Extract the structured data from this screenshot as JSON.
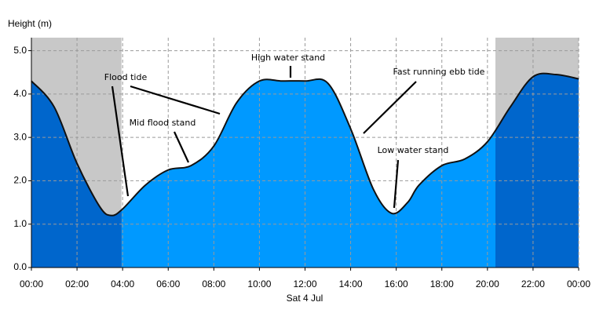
{
  "chart_data": {
    "type": "area",
    "y_label": "Height (m)",
    "x_label": "Sat 4 Jul",
    "x": [
      0,
      1,
      2,
      3,
      3.5,
      4,
      5,
      6,
      7,
      8,
      9,
      10,
      11,
      12,
      13,
      14,
      15,
      15.8,
      16.5,
      17,
      18,
      19,
      20,
      21,
      22,
      23,
      24
    ],
    "values": [
      4.3,
      3.7,
      2.4,
      1.4,
      1.2,
      1.35,
      1.9,
      2.25,
      2.35,
      2.8,
      3.8,
      4.3,
      4.3,
      4.3,
      4.25,
      3.2,
      1.8,
      1.25,
      1.5,
      1.9,
      2.35,
      2.5,
      2.9,
      3.7,
      4.4,
      4.45,
      4.35
    ],
    "color": "#0099ff",
    "night_color": "#0066cc",
    "night_background": "#c8c8c8",
    "line_color": "#111111",
    "night_ranges": [
      [
        0,
        3.95
      ],
      [
        20.35,
        24
      ]
    ],
    "xlim": [
      0,
      24
    ],
    "xticks": [
      {
        "value": 0,
        "label": "00:00"
      },
      {
        "value": 2,
        "label": "02:00"
      },
      {
        "value": 4,
        "label": "04:00"
      },
      {
        "value": 6,
        "label": "06:00"
      },
      {
        "value": 8,
        "label": "08:00"
      },
      {
        "value": 10,
        "label": "10:00"
      },
      {
        "value": 12,
        "label": "12:00"
      },
      {
        "value": 14,
        "label": "14:00"
      },
      {
        "value": 16,
        "label": "16:00"
      },
      {
        "value": 18,
        "label": "18:00"
      },
      {
        "value": 20,
        "label": "20:00"
      },
      {
        "value": 22,
        "label": "22:00"
      },
      {
        "value": 24,
        "label": "00:00"
      }
    ],
    "ylim": [
      0,
      5.3
    ],
    "yticks": [
      {
        "value": 0,
        "label": "0.0"
      },
      {
        "value": 1,
        "label": "1.0"
      },
      {
        "value": 2,
        "label": "2.0"
      },
      {
        "value": 3,
        "label": "3.0"
      },
      {
        "value": 4,
        "label": "4.0"
      },
      {
        "value": 5,
        "label": "5.0"
      }
    ],
    "grid": true,
    "annotations": [
      "Flood tide",
      "Mid flood stand",
      "High water stand",
      "Fast running ebb tide",
      "Low water stand"
    ]
  }
}
